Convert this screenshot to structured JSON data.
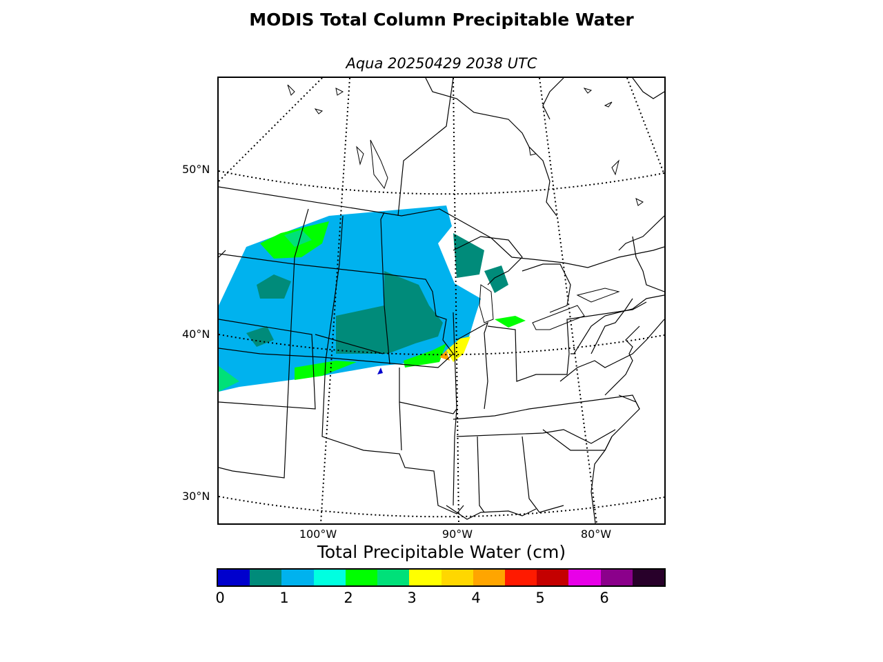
{
  "title": "MODIS Total Column Precipitable Water",
  "subtitle": "Aqua 20250429 2038 UTC",
  "map": {
    "latitude_labels": [
      "50°N",
      "40°N",
      "30°N"
    ],
    "longitude_labels": [
      "100°W",
      "90°W",
      "80°W"
    ]
  },
  "colorbar": {
    "title": "Total Precipitable Water (cm)",
    "tick_labels": [
      "0",
      "1",
      "2",
      "3",
      "4",
      "5",
      "6"
    ],
    "colors": [
      "#0000cd",
      "#008b7a",
      "#00b2ee",
      "#00ffe0",
      "#00ff00",
      "#00e079",
      "#ffff00",
      "#ffd700",
      "#ffa500",
      "#ff1a00",
      "#c40000",
      "#e800e8",
      "#8b008b",
      "#28002a"
    ]
  }
}
